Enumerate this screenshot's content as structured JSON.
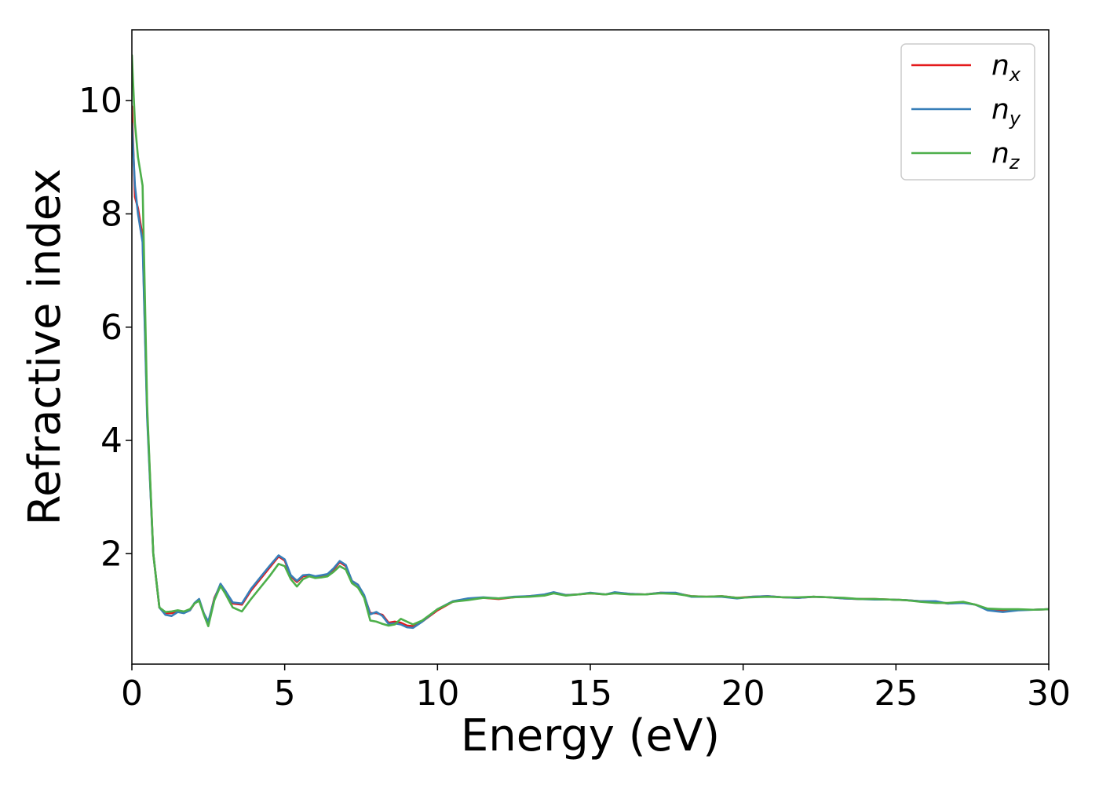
{
  "chart_data": {
    "type": "line",
    "title": "",
    "xlabel": "Energy (eV)",
    "ylabel": "Refractive index",
    "xlim": [
      0,
      30
    ],
    "ylim": [
      0.05,
      11.25
    ],
    "xticks": [
      0,
      5,
      10,
      15,
      20,
      25,
      30
    ],
    "yticks": [
      2,
      4,
      6,
      8,
      10
    ],
    "grid": false,
    "legend_position": "top-right",
    "series": [
      {
        "name": "n",
        "sub": "x",
        "color": "#e41a1c",
        "x": [
          0,
          0.1,
          0.2,
          0.35,
          0.5,
          0.7,
          0.9,
          1.1,
          1.3,
          1.5,
          1.7,
          1.9,
          2.05,
          2.2,
          2.35,
          2.5,
          2.7,
          2.9,
          3.05,
          3.3,
          3.6,
          3.9,
          4.2,
          4.5,
          4.8,
          5.0,
          5.2,
          5.4,
          5.6,
          5.8,
          6.0,
          6.2,
          6.4,
          6.6,
          6.8,
          7.0,
          7.2,
          7.4,
          7.6,
          7.8,
          8.0,
          8.2,
          8.4,
          8.6,
          8.8,
          9.0,
          9.2,
          9.5,
          10.0,
          10.5,
          11.0,
          11.5,
          12.0,
          12.5,
          13.0,
          13.5,
          13.8,
          14.2,
          14.6,
          15.0,
          15.5,
          15.8,
          16.3,
          16.8,
          17.3,
          17.8,
          18.3,
          18.8,
          19.3,
          19.8,
          20.3,
          20.8,
          21.3,
          21.8,
          22.3,
          22.8,
          23.3,
          23.8,
          24.3,
          24.8,
          25.3,
          25.8,
          26.3,
          26.7,
          27.2,
          27.6,
          28.0,
          28.5,
          29.0,
          29.5,
          30.0
        ],
        "y": [
          9.9,
          8.3,
          8.1,
          7.6,
          4.5,
          2.0,
          1.05,
          0.95,
          0.95,
          0.98,
          0.96,
          1.0,
          1.12,
          1.18,
          0.95,
          0.78,
          1.22,
          1.45,
          1.35,
          1.12,
          1.1,
          1.35,
          1.55,
          1.75,
          1.95,
          1.88,
          1.6,
          1.5,
          1.6,
          1.62,
          1.58,
          1.6,
          1.62,
          1.72,
          1.85,
          1.78,
          1.52,
          1.45,
          1.25,
          0.95,
          0.95,
          0.92,
          0.78,
          0.8,
          0.78,
          0.73,
          0.72,
          0.8,
          1.0,
          1.15,
          1.2,
          1.22,
          1.2,
          1.23,
          1.25,
          1.27,
          1.31,
          1.27,
          1.28,
          1.3,
          1.28,
          1.31,
          1.29,
          1.28,
          1.31,
          1.3,
          1.25,
          1.24,
          1.25,
          1.22,
          1.24,
          1.25,
          1.23,
          1.22,
          1.24,
          1.23,
          1.21,
          1.2,
          1.2,
          1.19,
          1.18,
          1.16,
          1.15,
          1.12,
          1.14,
          1.1,
          1.02,
          1.0,
          1.01,
          1.01,
          1.02
        ]
      },
      {
        "name": "n",
        "sub": "y",
        "color": "#377eb8",
        "x": [
          0,
          0.1,
          0.2,
          0.35,
          0.5,
          0.7,
          0.9,
          1.1,
          1.3,
          1.5,
          1.7,
          1.9,
          2.05,
          2.2,
          2.35,
          2.5,
          2.7,
          2.9,
          3.05,
          3.3,
          3.6,
          3.9,
          4.2,
          4.5,
          4.8,
          5.0,
          5.2,
          5.4,
          5.6,
          5.8,
          6.0,
          6.2,
          6.4,
          6.6,
          6.8,
          7.0,
          7.2,
          7.4,
          7.6,
          7.8,
          8.0,
          8.2,
          8.4,
          8.6,
          8.8,
          9.0,
          9.2,
          9.5,
          10.0,
          10.5,
          11.0,
          11.5,
          12.0,
          12.5,
          13.0,
          13.5,
          13.8,
          14.2,
          14.6,
          15.0,
          15.5,
          15.8,
          16.3,
          16.8,
          17.3,
          17.8,
          18.3,
          18.8,
          19.3,
          19.8,
          20.3,
          20.8,
          21.3,
          21.8,
          22.3,
          22.8,
          23.3,
          23.8,
          24.3,
          24.8,
          25.3,
          25.8,
          26.3,
          26.7,
          27.2,
          27.6,
          28.0,
          28.5,
          29.0,
          29.5,
          30.0
        ],
        "y": [
          9.6,
          8.5,
          8.0,
          7.5,
          4.4,
          2.0,
          1.05,
          0.92,
          0.9,
          0.97,
          0.95,
          1.0,
          1.13,
          1.2,
          0.95,
          0.8,
          1.2,
          1.47,
          1.35,
          1.14,
          1.12,
          1.38,
          1.58,
          1.78,
          1.97,
          1.9,
          1.62,
          1.52,
          1.62,
          1.63,
          1.6,
          1.62,
          1.64,
          1.74,
          1.87,
          1.8,
          1.52,
          1.45,
          1.27,
          0.93,
          0.97,
          0.9,
          0.76,
          0.77,
          0.75,
          0.7,
          0.69,
          0.8,
          1.02,
          1.16,
          1.21,
          1.23,
          1.21,
          1.24,
          1.25,
          1.28,
          1.32,
          1.27,
          1.28,
          1.31,
          1.28,
          1.32,
          1.29,
          1.28,
          1.31,
          1.31,
          1.24,
          1.24,
          1.24,
          1.21,
          1.24,
          1.25,
          1.23,
          1.22,
          1.24,
          1.23,
          1.21,
          1.2,
          1.19,
          1.19,
          1.18,
          1.16,
          1.16,
          1.12,
          1.13,
          1.1,
          1.0,
          0.97,
          1.0,
          1.01,
          1.02
        ]
      },
      {
        "name": "n",
        "sub": "z",
        "color": "#4daf4a",
        "x": [
          0,
          0.1,
          0.2,
          0.35,
          0.5,
          0.7,
          0.9,
          1.1,
          1.3,
          1.5,
          1.7,
          1.9,
          2.05,
          2.2,
          2.35,
          2.5,
          2.7,
          2.9,
          3.05,
          3.3,
          3.6,
          3.9,
          4.2,
          4.5,
          4.8,
          5.0,
          5.2,
          5.4,
          5.6,
          5.8,
          6.0,
          6.2,
          6.4,
          6.6,
          6.8,
          7.0,
          7.2,
          7.4,
          7.6,
          7.8,
          8.0,
          8.2,
          8.4,
          8.6,
          8.8,
          9.0,
          9.2,
          9.5,
          10.0,
          10.5,
          11.0,
          11.5,
          12.0,
          12.5,
          13.0,
          13.5,
          13.8,
          14.2,
          14.6,
          15.0,
          15.5,
          15.8,
          16.3,
          16.8,
          17.3,
          17.8,
          18.3,
          18.8,
          19.3,
          19.8,
          20.3,
          20.8,
          21.3,
          21.8,
          22.3,
          22.8,
          23.3,
          23.8,
          24.3,
          24.8,
          25.3,
          25.8,
          26.3,
          26.7,
          27.2,
          27.6,
          28.0,
          28.5,
          29.0,
          29.5,
          30.0
        ],
        "y": [
          10.8,
          9.6,
          9.0,
          8.5,
          4.6,
          2.0,
          1.05,
          0.97,
          0.98,
          1.0,
          0.98,
          1.02,
          1.12,
          1.17,
          0.93,
          0.72,
          1.18,
          1.43,
          1.3,
          1.05,
          0.98,
          1.2,
          1.4,
          1.6,
          1.82,
          1.78,
          1.55,
          1.42,
          1.55,
          1.6,
          1.57,
          1.58,
          1.6,
          1.68,
          1.78,
          1.72,
          1.48,
          1.4,
          1.22,
          0.82,
          0.8,
          0.76,
          0.73,
          0.75,
          0.85,
          0.8,
          0.75,
          0.82,
          1.02,
          1.15,
          1.18,
          1.22,
          1.21,
          1.23,
          1.24,
          1.26,
          1.3,
          1.26,
          1.28,
          1.3,
          1.28,
          1.3,
          1.28,
          1.28,
          1.3,
          1.29,
          1.25,
          1.24,
          1.25,
          1.22,
          1.23,
          1.24,
          1.23,
          1.23,
          1.24,
          1.23,
          1.22,
          1.2,
          1.2,
          1.19,
          1.18,
          1.15,
          1.13,
          1.13,
          1.15,
          1.1,
          1.03,
          1.02,
          1.02,
          1.01,
          1.02
        ]
      }
    ]
  }
}
